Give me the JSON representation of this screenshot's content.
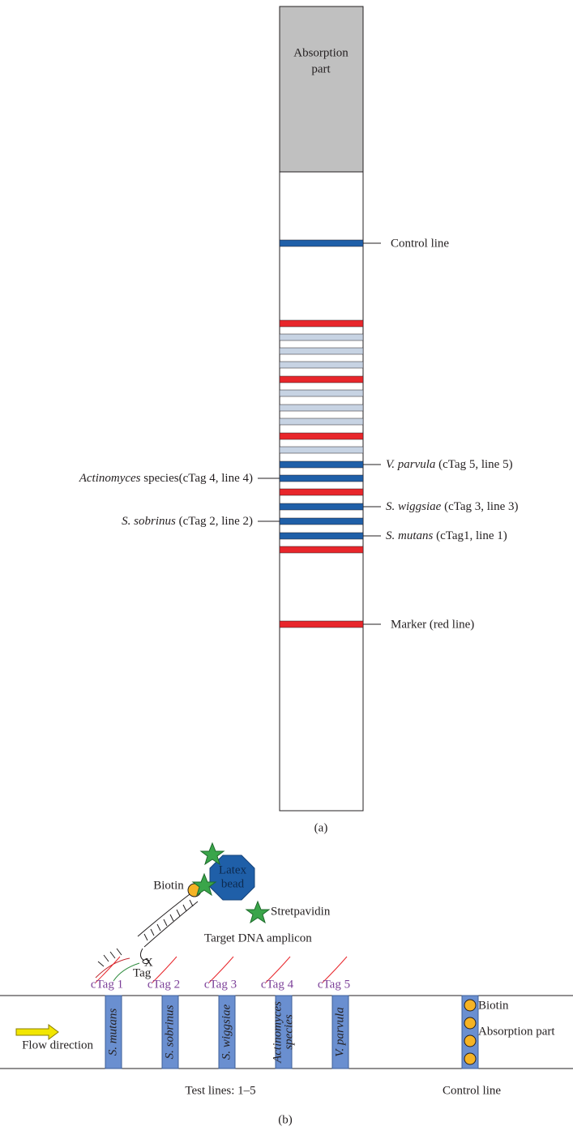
{
  "panel_a": {
    "absorption_label": [
      "Absorption",
      "part"
    ],
    "control_label": "Control line",
    "right_labels": [
      {
        "species": "V. parvula",
        "detail": " (cTag 5, line 5)"
      },
      {
        "species": "S. wiggsiae",
        "detail": " (cTag 3, line 3)"
      },
      {
        "species": "S. mutans",
        "detail": " (cTag1, line 1)"
      }
    ],
    "left_labels": [
      {
        "species": "Actinomyces",
        "detail": " species(cTag 4, line 4)"
      },
      {
        "species": "S. sobrinus",
        "detail": " (cTag 2, line 2)"
      }
    ],
    "marker_label": "Marker (red line)",
    "caption": "(a)"
  },
  "panel_b": {
    "biotin": "Biotin",
    "bead": [
      "Latex",
      "bead"
    ],
    "streptavidin": "Stretpavidin",
    "amplicon": "Target DNA amplicon",
    "x": "X",
    "tag": "Tag",
    "ctags": [
      "cTag 1",
      "cTag 2",
      "cTag 3",
      "cTag 4",
      "cTag 5"
    ],
    "lines": [
      [
        "S. mutans"
      ],
      [
        "S. sobrinus"
      ],
      [
        "S. wiggsiae"
      ],
      [
        "Actinomyces",
        "species"
      ],
      [
        "V. parvula"
      ]
    ],
    "flow": "Flow direction",
    "control_biotin": "Biotin",
    "control_absorption": "Absorption part",
    "test_lines": "Test lines: 1–5",
    "control_line": "Control line",
    "caption": "(b)"
  }
}
